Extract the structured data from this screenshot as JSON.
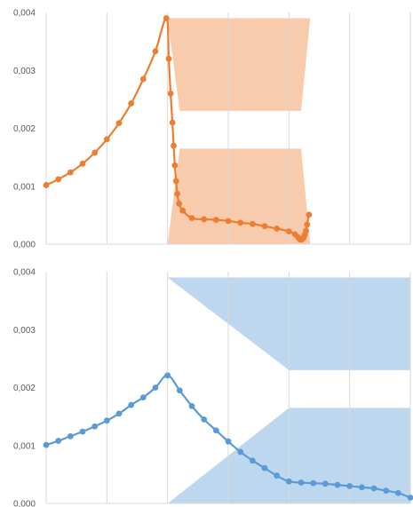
{
  "chart_data": [
    {
      "type": "line",
      "title": "",
      "xlabel": "",
      "ylabel": "",
      "xlim": [
        0,
        6
      ],
      "ylim": [
        0,
        0.004
      ],
      "y_ticks": [
        "0,000",
        "0,001",
        "0,002",
        "0,003",
        "0,004"
      ],
      "grid": "vertical",
      "shaded_regions": [
        {
          "polygon": [
            [
              2.0,
              0.0039
            ],
            [
              4.35,
              0.0039
            ],
            [
              4.2,
              0.0023
            ],
            [
              2.2,
              0.0023
            ]
          ],
          "color": "#f8cbad"
        },
        {
          "polygon": [
            [
              2.2,
              0.00165
            ],
            [
              4.2,
              0.00165
            ],
            [
              4.35,
              0.0
            ],
            [
              2.0,
              0.0
            ]
          ],
          "color": "#f8cbad"
        }
      ],
      "series": [
        {
          "color": "#ed7d31",
          "x": [
            0.0,
            0.2,
            0.4,
            0.6,
            0.8,
            1.0,
            1.2,
            1.4,
            1.6,
            1.8,
            1.98,
            2.02,
            2.05,
            2.08,
            2.1,
            2.12,
            2.14,
            2.16,
            2.19,
            2.25,
            2.4,
            2.6,
            2.8,
            3.0,
            3.2,
            3.4,
            3.6,
            3.8,
            4.0,
            4.1,
            4.15,
            4.18,
            4.21,
            4.24,
            4.26,
            4.28,
            4.3,
            4.33
          ],
          "y": [
            0.00102,
            0.00112,
            0.00124,
            0.00139,
            0.00158,
            0.00181,
            0.00209,
            0.00243,
            0.00285,
            0.00333,
            0.0039,
            0.0032,
            0.0026,
            0.0021,
            0.0017,
            0.00136,
            0.00109,
            0.00087,
            0.0007,
            0.00058,
            0.00045,
            0.00043,
            0.00042,
            0.0004,
            0.00037,
            0.00035,
            0.00031,
            0.00027,
            0.00022,
            0.00017,
            0.00012,
            8e-05,
            8e-05,
            0.00011,
            0.00016,
            0.00023,
            0.00034,
            0.00051
          ]
        }
      ]
    },
    {
      "type": "line",
      "title": "",
      "xlabel": "",
      "ylabel": "",
      "xlim": [
        0,
        6
      ],
      "ylim": [
        0,
        0.004
      ],
      "y_ticks": [
        "0,000",
        "0,001",
        "0,002",
        "0,003",
        "0,004"
      ],
      "grid": "vertical",
      "shaded_regions": [
        {
          "polygon": [
            [
              2.0,
              0.0039
            ],
            [
              6.0,
              0.0039
            ],
            [
              6.0,
              0.0023
            ],
            [
              4.0,
              0.0023
            ]
          ],
          "color": "#bdd7ee"
        },
        {
          "polygon": [
            [
              4.0,
              0.00165
            ],
            [
              6.0,
              0.00165
            ],
            [
              6.0,
              0.0
            ],
            [
              2.0,
              0.0
            ]
          ],
          "color": "#bdd7ee"
        }
      ],
      "series": [
        {
          "color": "#5b9bd5",
          "x": [
            0.0,
            0.2,
            0.4,
            0.6,
            0.8,
            1.0,
            1.2,
            1.4,
            1.6,
            1.8,
            2.0,
            2.2,
            2.4,
            2.6,
            2.8,
            3.0,
            3.2,
            3.4,
            3.6,
            3.8,
            4.0,
            4.2,
            4.4,
            4.6,
            4.8,
            5.0,
            5.2,
            5.4,
            5.6,
            5.8,
            6.0
          ],
          "y": [
            0.00101,
            0.00108,
            0.00116,
            0.00124,
            0.00133,
            0.00143,
            0.00155,
            0.0017,
            0.00183,
            0.002,
            0.00221,
            0.00195,
            0.00168,
            0.00145,
            0.00126,
            0.00107,
            0.00089,
            0.00074,
            0.00061,
            0.00048,
            0.00038,
            0.00036,
            0.00035,
            0.00034,
            0.00032,
            0.0003,
            0.00028,
            0.00026,
            0.00022,
            0.00018,
            0.0001
          ]
        }
      ]
    }
  ]
}
